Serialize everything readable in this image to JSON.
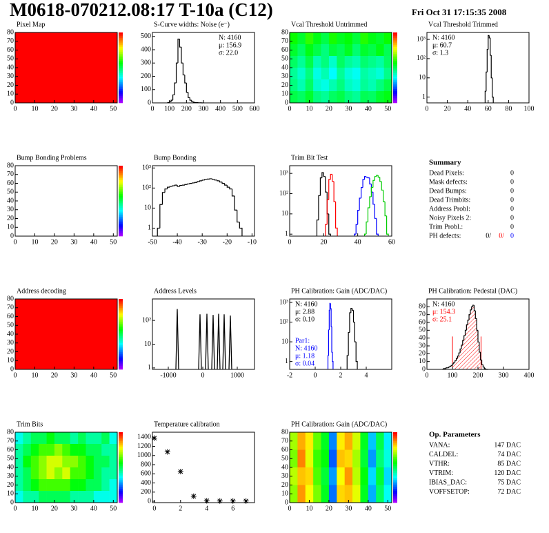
{
  "header": {
    "title": "M0618-070212.08:17 T-10a (C12)",
    "date": "Fri Oct 31 17:15:35 2008"
  },
  "chart_data": [
    {
      "type": "heatmap",
      "title": "Pixel Map",
      "xlim": [
        0,
        52
      ],
      "ylim": [
        0,
        80
      ],
      "xticks": [
        0,
        10,
        20,
        30,
        40,
        50
      ],
      "yticks": [
        0,
        10,
        20,
        30,
        40,
        50,
        60,
        70,
        80
      ],
      "zlim": [
        0,
        10
      ],
      "z": [
        [
          10
        ]
      ]
    },
    {
      "type": "histogram",
      "title": "S-Curve widths: Noise (e⁻)",
      "xlim": [
        0,
        600
      ],
      "ylim": [
        0,
        530
      ],
      "xticks": [
        0,
        100,
        200,
        300,
        400,
        500,
        600
      ],
      "yticks": [
        0,
        100,
        200,
        300,
        400,
        500
      ],
      "log": false,
      "color": "#000000",
      "bins": [
        90,
        100,
        110,
        120,
        130,
        140,
        150,
        160,
        170,
        180,
        190,
        200,
        210,
        220,
        230,
        240,
        250,
        260,
        270,
        280,
        290,
        300
      ],
      "values": [
        2,
        8,
        20,
        60,
        150,
        300,
        480,
        420,
        300,
        210,
        150,
        80,
        40,
        20,
        10,
        5,
        3,
        2,
        1,
        1,
        0
      ],
      "stats": [
        "N: 4160",
        "μ: 156.9",
        "σ: 22.0"
      ],
      "stats_corner": "top-right"
    },
    {
      "type": "heatmap",
      "title": "Vcal Threshold Untrimmed",
      "xlim": [
        0,
        52
      ],
      "ylim": [
        0,
        80
      ],
      "xticks": [
        0,
        10,
        20,
        30,
        40,
        50
      ],
      "yticks": [
        0,
        10,
        20,
        30,
        40,
        50,
        60,
        70,
        80
      ],
      "zlim": [
        40,
        130
      ],
      "z": [
        [
          92,
          88,
          95,
          90,
          86,
          93,
          89,
          91,
          87,
          94,
          90,
          88,
          92
        ],
        [
          88,
          84,
          90,
          86,
          82,
          87,
          85,
          89,
          83,
          88,
          86,
          90,
          85
        ],
        [
          84,
          80,
          86,
          78,
          82,
          76,
          84,
          80,
          78,
          83,
          81,
          79,
          84
        ],
        [
          80,
          76,
          82,
          74,
          78,
          72,
          80,
          75,
          73,
          79,
          77,
          75,
          81
        ],
        [
          82,
          78,
          84,
          76,
          74,
          78,
          82,
          77,
          75,
          80,
          78,
          82,
          86
        ],
        [
          86,
          84,
          88,
          82,
          80,
          84,
          86,
          82,
          80,
          85,
          84,
          88,
          90
        ]
      ]
    },
    {
      "type": "histogram",
      "title": "Vcal Threshold Trimmed",
      "xlim": [
        0,
        100
      ],
      "ylim": [
        0.5,
        2300
      ],
      "xticks": [
        0,
        20,
        40,
        60,
        80,
        100
      ],
      "yticks": [
        1,
        10,
        {
          "value": 100,
          "label": "10²"
        },
        {
          "value": 1000,
          "label": "10³"
        }
      ],
      "log": true,
      "color": "#000000",
      "bins": [
        57,
        58,
        59,
        60,
        61,
        62,
        63,
        64,
        65
      ],
      "values": [
        2,
        20,
        300,
        1600,
        1200,
        150,
        10,
        1
      ],
      "stats": [
        "N: 4160",
        "μ: 60.7",
        "σ:  1.3"
      ],
      "stats_corner": "top-left"
    },
    {
      "type": "heatmap",
      "title": "Bump Bonding Problems",
      "xlim": [
        0,
        52
      ],
      "ylim": [
        0,
        80
      ],
      "xticks": [
        0,
        10,
        20,
        30,
        40,
        50
      ],
      "yticks": [
        0,
        10,
        20,
        30,
        40,
        50,
        60,
        70,
        80
      ],
      "zlim": [
        -5,
        5
      ],
      "z": []
    },
    {
      "type": "histogram",
      "title": "Bump Bonding",
      "xlim": [
        -50,
        -9
      ],
      "ylim": [
        0.4,
        1300
      ],
      "xticks": [
        -50,
        -40,
        -30,
        -20,
        -10
      ],
      "yticks": [
        1,
        10,
        {
          "value": 100,
          "label": "10²"
        },
        {
          "value": 1000,
          "label": "10³"
        }
      ],
      "log": true,
      "color": "#000000",
      "bins": [
        -48,
        -47,
        -46,
        -45,
        -44,
        -43,
        -42,
        -41,
        -40,
        -39,
        -38,
        -37,
        -36,
        -35,
        -34,
        -33,
        -32,
        -31,
        -30,
        -29,
        -28,
        -27,
        -26,
        -25,
        -24,
        -23,
        -22,
        -21,
        -20,
        -19,
        -18,
        -17,
        -16,
        -15,
        -14
      ],
      "values": [
        1,
        15,
        60,
        90,
        110,
        120,
        130,
        140,
        120,
        135,
        140,
        150,
        160,
        170,
        180,
        190,
        210,
        230,
        250,
        270,
        280,
        290,
        270,
        250,
        230,
        200,
        170,
        140,
        110,
        90,
        40,
        8,
        2,
        1
      ]
    },
    {
      "type": "histogram",
      "title": "Trim Bit Test",
      "xlim": [
        0,
        60
      ],
      "ylim": [
        0.8,
        2400
      ],
      "xticks": [
        0,
        20,
        40,
        60
      ],
      "yticks": [
        1,
        10,
        {
          "value": 100,
          "label": "10²"
        },
        {
          "value": 1000,
          "label": "10³"
        }
      ],
      "log": true,
      "series": [
        {
          "color": "#000000",
          "bins": [
            16,
            17,
            18,
            19,
            20,
            21,
            22,
            23,
            24
          ],
          "values": [
            5,
            80,
            600,
            1100,
            700,
            120,
            10,
            1
          ]
        },
        {
          "color": "#ff0000",
          "bins": [
            21,
            22,
            23,
            24,
            25,
            26,
            27,
            28
          ],
          "values": [
            3,
            50,
            500,
            900,
            400,
            40,
            2
          ]
        },
        {
          "color": "#0000ff",
          "bins": [
            38,
            39,
            40,
            41,
            42,
            43,
            44,
            45,
            46,
            47,
            48,
            49,
            50,
            51,
            52
          ],
          "values": [
            1,
            3,
            15,
            60,
            200,
            500,
            700,
            650,
            600,
            300,
            120,
            30,
            6,
            1
          ]
        },
        {
          "color": "#00cc00",
          "bins": [
            44,
            45,
            46,
            47,
            48,
            49,
            50,
            51,
            52,
            53,
            54,
            55,
            56,
            57,
            58
          ],
          "values": [
            1,
            4,
            20,
            70,
            200,
            450,
            700,
            800,
            650,
            400,
            150,
            40,
            8,
            1
          ]
        }
      ]
    },
    {
      "type": "heatmap",
      "title": "Address decoding",
      "xlim": [
        0,
        52
      ],
      "ylim": [
        0,
        80
      ],
      "xticks": [
        0,
        10,
        20,
        30,
        40,
        50
      ],
      "yticks": [
        0,
        10,
        20,
        30,
        40,
        50,
        60,
        70,
        80
      ],
      "zlim": [
        0,
        1
      ],
      "z": [
        [
          1
        ]
      ]
    },
    {
      "type": "spikes",
      "title": "Address Levels",
      "xlim": [
        -1460,
        1500
      ],
      "ylim": [
        0.87,
        800
      ],
      "xticks": [
        -1000,
        0,
        1000
      ],
      "yticks": [
        1,
        10,
        {
          "value": 100,
          "label": "10²"
        }
      ],
      "log": true,
      "color": "#000000",
      "x": [
        -740,
        -80,
        120,
        300,
        460,
        620,
        800
      ],
      "values": [
        300,
        180,
        190,
        170,
        190,
        180,
        160
      ]
    },
    {
      "type": "histogram",
      "title": "PH Calibration: Gain (ADC/DAC)",
      "xlim": [
        -2,
        6
      ],
      "ylim": [
        0.4,
        1500
      ],
      "xticks": [
        -2,
        0,
        2,
        4
      ],
      "yticks": [
        1,
        10,
        {
          "value": 100,
          "label": "10²"
        },
        {
          "value": 1000,
          "label": "10³"
        }
      ],
      "log": true,
      "series": [
        {
          "color": "#000000",
          "bins": [
            2.5,
            2.6,
            2.7,
            2.8,
            2.9,
            3.0,
            3.1,
            3.2,
            3.3
          ],
          "values": [
            2,
            30,
            300,
            500,
            400,
            100,
            10,
            1
          ]
        },
        {
          "color": "#0000ff",
          "bins": [
            1.0,
            1.05,
            1.1,
            1.15,
            1.2,
            1.25,
            1.3,
            1.35,
            1.4
          ],
          "values": [
            2,
            40,
            400,
            900,
            500,
            60,
            3,
            1
          ]
        }
      ],
      "stats": [
        "N: 4160",
        "μ: 2.88",
        "σ: 0.10"
      ],
      "stats_corner": "top-left",
      "stats2": [
        "Par1:",
        "N: 4160",
        "μ: 1.18",
        "σ: 0.04"
      ],
      "stats2_color": "#0000ff",
      "stats2_corner": "bottom-left"
    },
    {
      "type": "histogram",
      "title": "PH Calibration: Pedestal (DAC)",
      "xlim": [
        0,
        400
      ],
      "ylim": [
        0,
        90
      ],
      "xticks": [
        0,
        100,
        200,
        300,
        400
      ],
      "yticks": [
        0,
        10,
        20,
        30,
        40,
        50,
        60,
        70,
        80
      ],
      "log": false,
      "color": "#000000",
      "bins": [
        60,
        65,
        70,
        75,
        80,
        85,
        90,
        95,
        100,
        105,
        110,
        115,
        120,
        125,
        130,
        135,
        140,
        145,
        150,
        155,
        160,
        165,
        170,
        175,
        180,
        185,
        190,
        195,
        200,
        205,
        210,
        215,
        220,
        225,
        230,
        235,
        240
      ],
      "values": [
        0,
        1,
        1,
        2,
        2,
        3,
        4,
        5,
        7,
        9,
        11,
        14,
        17,
        21,
        26,
        31,
        37,
        43,
        50,
        57,
        63,
        70,
        76,
        80,
        82,
        75,
        65,
        50,
        35,
        22,
        12,
        6,
        3,
        1,
        0,
        0
      ],
      "lines": [
        {
          "x": 100,
          "top": 42
        },
        {
          "x": 212,
          "top": 42
        }
      ],
      "line_color": "#ff0000",
      "stats": [
        "N: 4160",
        "μ: 154.3",
        "σ: 25.1"
      ],
      "stats_colors": [
        "#000000",
        "#ff0000",
        "#ff0000"
      ],
      "stats_corner": "top-left"
    },
    {
      "type": "heatmap",
      "title": "Trim Bits",
      "xlim": [
        0,
        52
      ],
      "ylim": [
        0,
        80
      ],
      "xticks": [
        0,
        10,
        20,
        30,
        40,
        50
      ],
      "yticks": [
        0,
        10,
        20,
        30,
        40,
        50,
        60,
        70,
        80
      ],
      "zlim": [
        0,
        16
      ],
      "z": [
        [
          6,
          7,
          8,
          8,
          9,
          8,
          8,
          7,
          8,
          7,
          7,
          8,
          6
        ],
        [
          7,
          8,
          9,
          10,
          10,
          11,
          10,
          9,
          9,
          8,
          8,
          7,
          7
        ],
        [
          7,
          9,
          10,
          11,
          12,
          12,
          11,
          11,
          10,
          9,
          8,
          8,
          7
        ],
        [
          7,
          8,
          10,
          11,
          12,
          11,
          12,
          10,
          10,
          9,
          8,
          7,
          7
        ],
        [
          7,
          8,
          9,
          10,
          10,
          10,
          10,
          9,
          9,
          8,
          8,
          7,
          6
        ],
        [
          6,
          7,
          7,
          8,
          8,
          8,
          8,
          7,
          7,
          7,
          6,
          6,
          6
        ]
      ]
    },
    {
      "type": "scatter",
      "title": "Temperature calibration",
      "xlim": [
        -0.15,
        7.65
      ],
      "ylim": [
        -30,
        1510
      ],
      "xticks": [
        0,
        2,
        4,
        6
      ],
      "yticks": [
        0,
        200,
        400,
        600,
        800,
        1000,
        1200,
        1400
      ],
      "log": false,
      "color": "#000000",
      "x": [
        0,
        1,
        2,
        3,
        4,
        5,
        6,
        7
      ],
      "values": [
        1380,
        1080,
        650,
        110,
        10,
        5,
        5,
        5
      ]
    },
    {
      "type": "heatmap",
      "title": "PH Calibration: Gain (ADC/DAC)",
      "xlim": [
        0,
        52
      ],
      "ylim": [
        0,
        80
      ],
      "xticks": [
        0,
        10,
        20,
        30,
        40,
        50
      ],
      "yticks": [
        0,
        10,
        20,
        30,
        40,
        50,
        60,
        70,
        80
      ],
      "zlim": [
        2.55,
        3.1
      ],
      "z": [
        [
          2.94,
          3.02,
          2.99,
          2.91,
          2.85,
          2.69,
          2.99,
          3.02,
          2.96,
          2.85,
          2.72,
          2.83,
          2.74
        ],
        [
          2.92,
          3.04,
          2.97,
          2.89,
          2.86,
          2.67,
          3.01,
          3.0,
          2.94,
          2.84,
          2.7,
          2.81,
          2.76
        ],
        [
          2.95,
          3.01,
          3.0,
          2.9,
          2.84,
          2.7,
          2.98,
          3.03,
          2.95,
          2.86,
          2.73,
          2.84,
          2.73
        ],
        [
          2.93,
          3.03,
          2.98,
          2.92,
          2.85,
          2.68,
          3.0,
          3.01,
          2.97,
          2.85,
          2.71,
          2.82,
          2.75
        ]
      ]
    }
  ],
  "summary": {
    "title": "Summary",
    "rows": [
      [
        "Dead Pixels:",
        0
      ],
      [
        "Mask defects:",
        0
      ],
      [
        "Dead Bumps:",
        0
      ],
      [
        "Dead Trimbits:",
        0
      ],
      [
        "Address Probl:",
        0
      ],
      [
        "Noisy Pixels 2:",
        0
      ],
      [
        "Trim Probl.:",
        0
      ]
    ],
    "ph_defects": {
      "label": "PH defects:",
      "values": [
        "0/",
        "0/",
        "0"
      ],
      "colors": [
        "#000000",
        "#ff0000",
        "#0000ff"
      ]
    }
  },
  "op_parameters": {
    "title": "Op. Parameters",
    "rows": [
      [
        "VANA:",
        "147 DAC"
      ],
      [
        "CALDEL:",
        "74 DAC"
      ],
      [
        "VTHR:",
        "85 DAC"
      ],
      [
        "VTRIM:",
        "120 DAC"
      ],
      [
        "IBIAS_DAC:",
        "75 DAC"
      ],
      [
        "VOFFSETOP:",
        "72 DAC"
      ]
    ]
  }
}
